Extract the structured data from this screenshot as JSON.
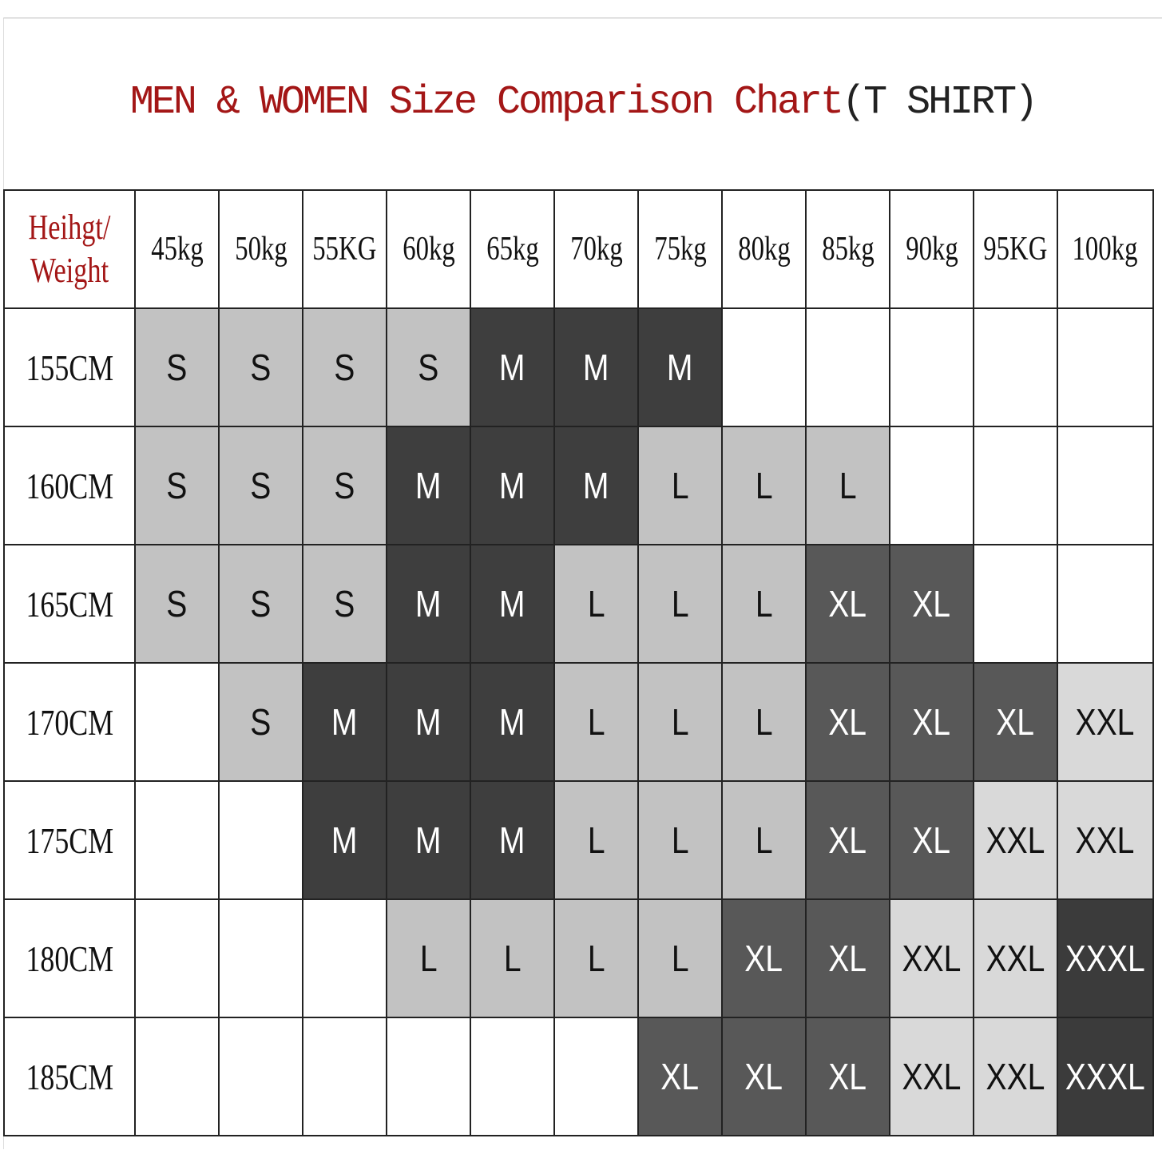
{
  "title": {
    "main": "MEN & WOMEN Size Comparison Chart",
    "suffix": "(T SHIRT)"
  },
  "colors": {
    "S": "#c2c2c2",
    "M": "#3e3e3e",
    "L": "#c2c2c2",
    "XL": "#585858",
    "XXL": "#d9d9d9",
    "XXXL": "#3b3b3b",
    "empty": "#ffffff",
    "title": "#a31616"
  },
  "text_colors": {
    "S": "#111",
    "M": "#fff",
    "L": "#111",
    "XL": "#fff",
    "XXL": "#111",
    "XXXL": "#fff"
  },
  "chart_data": {
    "type": "table",
    "title": "MEN & WOMEN Size Comparison Chart(T SHIRT)",
    "corner_label": [
      "Heihgt/",
      "Weight"
    ],
    "columns": [
      "45kg",
      "50kg",
      "55KG",
      "60kg",
      "65kg",
      "70kg",
      "75kg",
      "80kg",
      "85kg",
      "90kg",
      "95KG",
      "100kg"
    ],
    "rows": [
      {
        "height": "155CM",
        "sizes": [
          "S",
          "S",
          "S",
          "S",
          "M",
          "M",
          "M",
          "",
          "",
          "",
          "",
          ""
        ]
      },
      {
        "height": "160CM",
        "sizes": [
          "S",
          "S",
          "S",
          "M",
          "M",
          "M",
          "L",
          "L",
          "L",
          "",
          "",
          ""
        ]
      },
      {
        "height": "165CM",
        "sizes": [
          "S",
          "S",
          "S",
          "M",
          "M",
          "L",
          "L",
          "L",
          "XL",
          "XL",
          "",
          ""
        ]
      },
      {
        "height": "170CM",
        "sizes": [
          "",
          "S",
          "M",
          "M",
          "M",
          "L",
          "L",
          "L",
          "XL",
          "XL",
          "XL",
          "XXL"
        ]
      },
      {
        "height": "175CM",
        "sizes": [
          "",
          "",
          "M",
          "M",
          "M",
          "L",
          "L",
          "L",
          "XL",
          "XL",
          "XXL",
          "XXL"
        ]
      },
      {
        "height": "180CM",
        "sizes": [
          "",
          "",
          "",
          "L",
          "L",
          "L",
          "L",
          "XL",
          "XL",
          "XXL",
          "XXL",
          "XXXL"
        ]
      },
      {
        "height": "185CM",
        "sizes": [
          "",
          "",
          "",
          "",
          "",
          "",
          "XL",
          "XL",
          "XL",
          "XXL",
          "XXL",
          "XXXL"
        ]
      }
    ]
  }
}
